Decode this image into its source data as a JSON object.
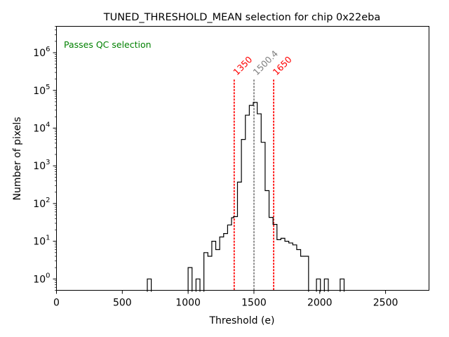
{
  "chart_data": {
    "type": "histogram",
    "title": "TUNED_THRESHOLD_MEAN selection for chip 0x22eba",
    "xlabel": "Threshold (e)",
    "ylabel": "Number of pixels",
    "x_scale": "linear",
    "y_scale": "log",
    "xlim": [
      0,
      2830
    ],
    "ylim": [
      0.5,
      5000000
    ],
    "x_ticks": [
      0,
      500,
      1000,
      1500,
      2000,
      2500
    ],
    "x_tick_labels": [
      "0",
      "500",
      "1000",
      "1500",
      "2000",
      "2500"
    ],
    "y_ticks": [
      1,
      10,
      100,
      1000,
      10000,
      100000,
      1000000
    ],
    "y_tick_labels": [
      {
        "base": "10",
        "exp": "0"
      },
      {
        "base": "10",
        "exp": "1"
      },
      {
        "base": "10",
        "exp": "2"
      },
      {
        "base": "10",
        "exp": "3"
      },
      {
        "base": "10",
        "exp": "4"
      },
      {
        "base": "10",
        "exp": "5"
      },
      {
        "base": "10",
        "exp": "6"
      }
    ],
    "annotation": {
      "text": "Passes QC selection",
      "color": "#008000",
      "placement": "top-left"
    },
    "bin_width": 30,
    "bins": [
      {
        "x0": 690,
        "count": 1
      },
      {
        "x0": 1000,
        "count": 2
      },
      {
        "x0": 1060,
        "count": 1
      },
      {
        "x0": 1120,
        "count": 5
      },
      {
        "x0": 1150,
        "count": 4
      },
      {
        "x0": 1180,
        "count": 10
      },
      {
        "x0": 1210,
        "count": 6
      },
      {
        "x0": 1240,
        "count": 13
      },
      {
        "x0": 1270,
        "count": 16
      },
      {
        "x0": 1300,
        "count": 27
      },
      {
        "x0": 1330,
        "count": 42
      },
      {
        "x0": 1345,
        "count": 45
      },
      {
        "x0": 1375,
        "count": 370
      },
      {
        "x0": 1405,
        "count": 5000
      },
      {
        "x0": 1435,
        "count": 22000
      },
      {
        "x0": 1465,
        "count": 40000
      },
      {
        "x0": 1495,
        "count": 48000
      },
      {
        "x0": 1525,
        "count": 24000
      },
      {
        "x0": 1555,
        "count": 4200
      },
      {
        "x0": 1585,
        "count": 220
      },
      {
        "x0": 1615,
        "count": 43
      },
      {
        "x0": 1645,
        "count": 28
      },
      {
        "x0": 1675,
        "count": 11
      },
      {
        "x0": 1705,
        "count": 12
      },
      {
        "x0": 1735,
        "count": 10
      },
      {
        "x0": 1765,
        "count": 9
      },
      {
        "x0": 1795,
        "count": 8
      },
      {
        "x0": 1825,
        "count": 6
      },
      {
        "x0": 1855,
        "count": 4
      },
      {
        "x0": 1885,
        "count": 4
      },
      {
        "x0": 1975,
        "count": 1
      },
      {
        "x0": 2035,
        "count": 1
      },
      {
        "x0": 2155,
        "count": 1
      }
    ],
    "vlines": [
      {
        "x": 1350,
        "label": "1350",
        "color": "#ff0000",
        "style": "dotted"
      },
      {
        "x": 1500.4,
        "label": "1500.4",
        "color": "#808080",
        "style": "dotted"
      },
      {
        "x": 1650,
        "label": "1650",
        "color": "#ff0000",
        "style": "dotted"
      }
    ],
    "colors": {
      "histogram": "#000000",
      "axes": "#000000"
    }
  }
}
